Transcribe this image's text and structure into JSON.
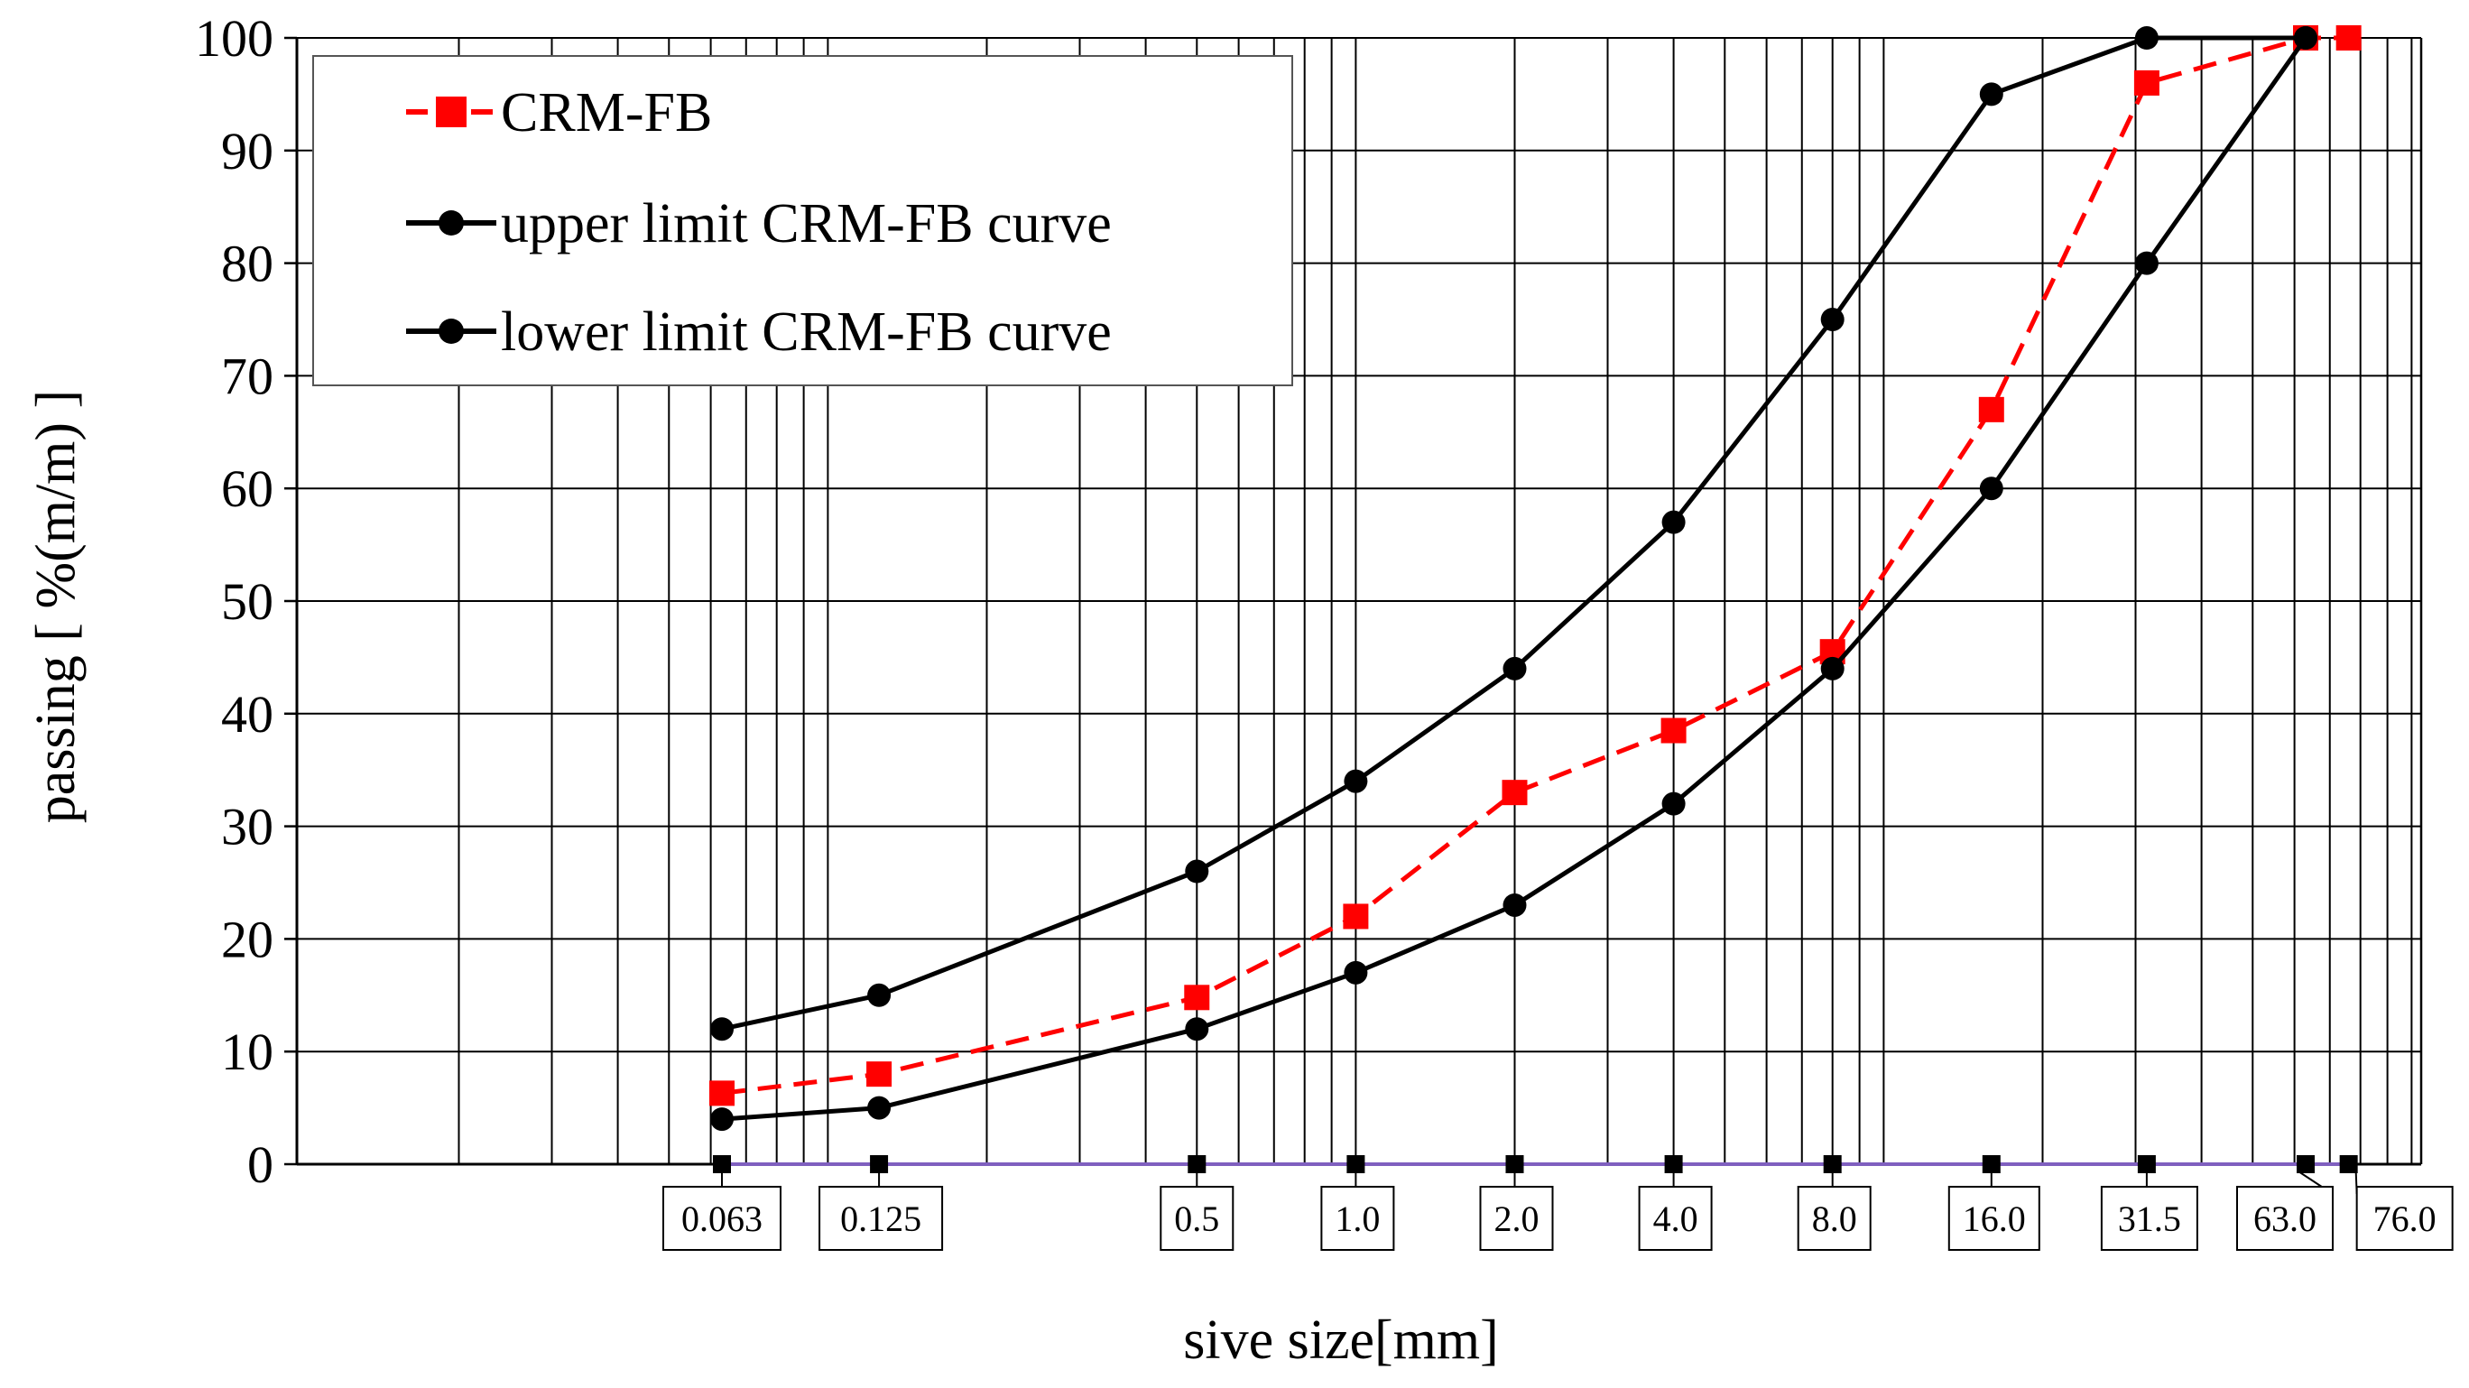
{
  "chart_data": {
    "type": "line",
    "title": "",
    "xlabel": "sive size[mm]",
    "ylabel": "passing [ %(m/m) ]",
    "x_scale": "log",
    "ylim": [
      0,
      100
    ],
    "y_ticks": [
      "0",
      "10",
      "20",
      "30",
      "40",
      "50",
      "60",
      "70",
      "80",
      "90",
      "100"
    ],
    "sieve_sizes": [
      0.063,
      0.125,
      0.5,
      1.0,
      2.0,
      4.0,
      8.0,
      16.0,
      31.5,
      63.0,
      76.0
    ],
    "sieve_labels": [
      "0.063",
      "0.125",
      "0.5",
      "1.0",
      "2.0",
      "4.0",
      "8.0",
      "16.0",
      "31.5",
      "63.0",
      "76.0"
    ],
    "grid": true,
    "legend_position": "top-left",
    "series": [
      {
        "name": "CRM-FB",
        "color": "#ff0000",
        "style": "dashed",
        "marker": "square",
        "x": [
          0.063,
          0.125,
          0.5,
          1.0,
          2.0,
          4.0,
          8.0,
          16.0,
          31.5,
          63.0,
          76.0
        ],
        "values": [
          6.3,
          8,
          14.8,
          22,
          33,
          38.5,
          45.5,
          67,
          96,
          100,
          100
        ]
      },
      {
        "name": "upper limit CRM-FB curve",
        "color": "#000000",
        "style": "solid",
        "marker": "circle",
        "x": [
          0.063,
          0.125,
          0.5,
          1.0,
          2.0,
          4.0,
          8.0,
          16.0,
          31.5,
          63.0
        ],
        "values": [
          12,
          15,
          26,
          34,
          44,
          57,
          75,
          95,
          100,
          100
        ]
      },
      {
        "name": "lower limit CRM-FB curve",
        "color": "#000000",
        "style": "solid",
        "marker": "circle",
        "x": [
          0.063,
          0.125,
          0.5,
          1.0,
          2.0,
          4.0,
          8.0,
          16.0,
          31.5,
          63.0
        ],
        "values": [
          4,
          5,
          12,
          17,
          23,
          32,
          44,
          60,
          80,
          100
        ]
      }
    ]
  }
}
